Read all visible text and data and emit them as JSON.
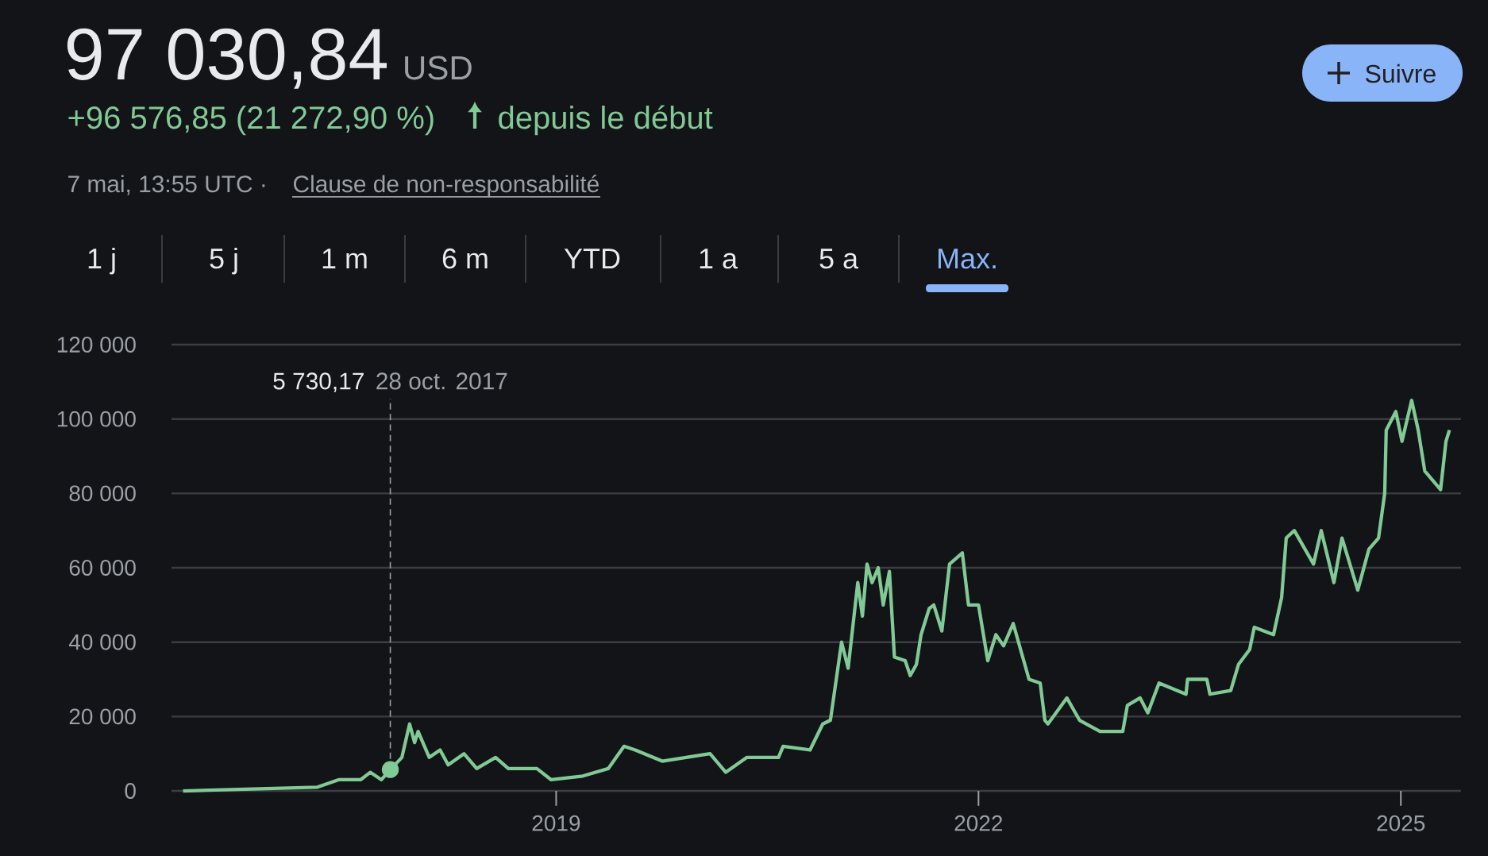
{
  "chart_data": {
    "type": "line",
    "title": "97 030,84",
    "annotations": [
      "USD",
      "+96 576,85 (21 272,90 %)",
      "depuis le début",
      "7 mai, 13:55 UTC ·",
      "Clause de non-responsabilité",
      "Suivre",
      "1 j",
      "5 j",
      "1 m",
      "6 m",
      "YTD",
      "1 a",
      "5 a",
      "Max.",
      {
        "text": "5 730,17",
        "x": "2017-10-28",
        "y": 5730.17
      },
      "28 oct. 2017"
    ],
    "x": [
      "2016-05-08",
      "2017-04-22",
      "2017-06-16",
      "2017-08-12",
      "2017-09-06",
      "2017-10-05",
      "2017-10-28",
      "2017-11-27",
      "2017-12-17",
      "2017-12-30",
      "2018-01-08",
      "2018-02-06",
      "2018-03-06",
      "2018-03-27",
      "2018-05-07",
      "2018-06-09",
      "2018-07-28",
      "2018-08-30",
      "2018-11-12",
      "2018-12-19",
      "2019-03-11",
      "2019-05-16",
      "2019-06-26",
      "2019-07-25",
      "2019-10-03",
      "2020-02-04",
      "2020-03-16",
      "2020-05-10",
      "2020-07-31",
      "2020-08-12",
      "2020-10-21",
      "2020-11-23",
      "2020-12-13",
      "2021-01-11",
      "2021-01-28",
      "2021-02-22",
      "2021-03-06",
      "2021-03-18",
      "2021-03-31",
      "2021-04-16",
      "2021-04-29",
      "2021-05-15",
      "2021-05-28",
      "2021-06-25",
      "2021-07-08",
      "2021-07-24",
      "2021-08-05",
      "2021-08-26",
      "2021-09-07",
      "2021-09-28",
      "2021-10-18",
      "2021-11-20",
      "2021-12-06",
      "2022-01-01",
      "2022-01-25",
      "2022-02-15",
      "2022-03-07",
      "2022-04-01",
      "2022-05-12",
      "2022-06-10",
      "2022-06-22",
      "2022-06-30",
      "2022-08-18",
      "2022-09-20",
      "2022-11-12",
      "2023-01-10",
      "2023-01-22",
      "2023-02-24",
      "2023-03-16",
      "2023-04-14",
      "2023-06-23",
      "2023-06-27",
      "2023-08-16",
      "2023-08-24",
      "2023-10-17",
      "2023-11-06",
      "2023-12-05",
      "2023-12-17",
      "2024-02-05",
      "2024-02-26",
      "2024-03-09",
      "2024-03-30",
      "2024-05-19",
      "2024-06-08",
      "2024-07-11",
      "2024-08-01",
      "2024-09-11",
      "2024-10-10",
      "2024-11-04",
      "2024-11-20",
      "2024-11-24",
      "2024-12-19",
      "2025-01-04",
      "2025-01-29",
      "2025-02-15",
      "2025-03-04",
      "2025-04-14",
      "2025-04-28",
      "2025-05-07"
    ],
    "series": [
      {
        "color": "#81c995",
        "values": [
          0,
          1000,
          3000,
          3000,
          5000,
          3000,
          5730.17,
          9000,
          18000,
          13000,
          16000,
          9000,
          11000,
          7000,
          10000,
          6000,
          9000,
          6000,
          6000,
          3000,
          4000,
          6000,
          12000,
          11000,
          8000,
          10000,
          5000,
          9000,
          9000,
          12000,
          11000,
          18000,
          19000,
          40000,
          33000,
          56000,
          47000,
          61000,
          56000,
          60000,
          50000,
          59000,
          36000,
          35000,
          31000,
          34000,
          42000,
          49000,
          50000,
          43000,
          61000,
          64000,
          50000,
          50000,
          35000,
          42000,
          39000,
          45000,
          30000,
          29000,
          19000,
          18000,
          25000,
          19000,
          16000,
          16000,
          23000,
          25000,
          21000,
          29000,
          26000,
          30000,
          30000,
          26000,
          27000,
          34000,
          38000,
          44000,
          42000,
          52000,
          68000,
          70000,
          61000,
          70000,
          56000,
          68000,
          54000,
          65000,
          68000,
          80000,
          97000,
          102000,
          94000,
          105000,
          97000,
          86000,
          81000,
          94000,
          97030.84
        ]
      }
    ],
    "xlim": [
      "2016-04-08",
      "2025-06-06"
    ],
    "xticks": [
      {
        "value": "2019-01-01",
        "label": "2019"
      },
      {
        "value": "2022-01-01",
        "label": "2022"
      },
      {
        "value": "2025-01-01",
        "label": "2025"
      }
    ],
    "ylim": [
      0,
      120000
    ],
    "yticks": [
      0,
      {
        "value": 20000,
        "label": "20 000"
      },
      {
        "value": 40000,
        "label": "40 000"
      },
      {
        "value": 60000,
        "label": "60 000"
      },
      {
        "value": 80000,
        "label": "80 000"
      },
      {
        "value": 100000,
        "label": "100 000"
      },
      {
        "value": 120000,
        "label": "120 000"
      }
    ],
    "grid": "y"
  }
}
